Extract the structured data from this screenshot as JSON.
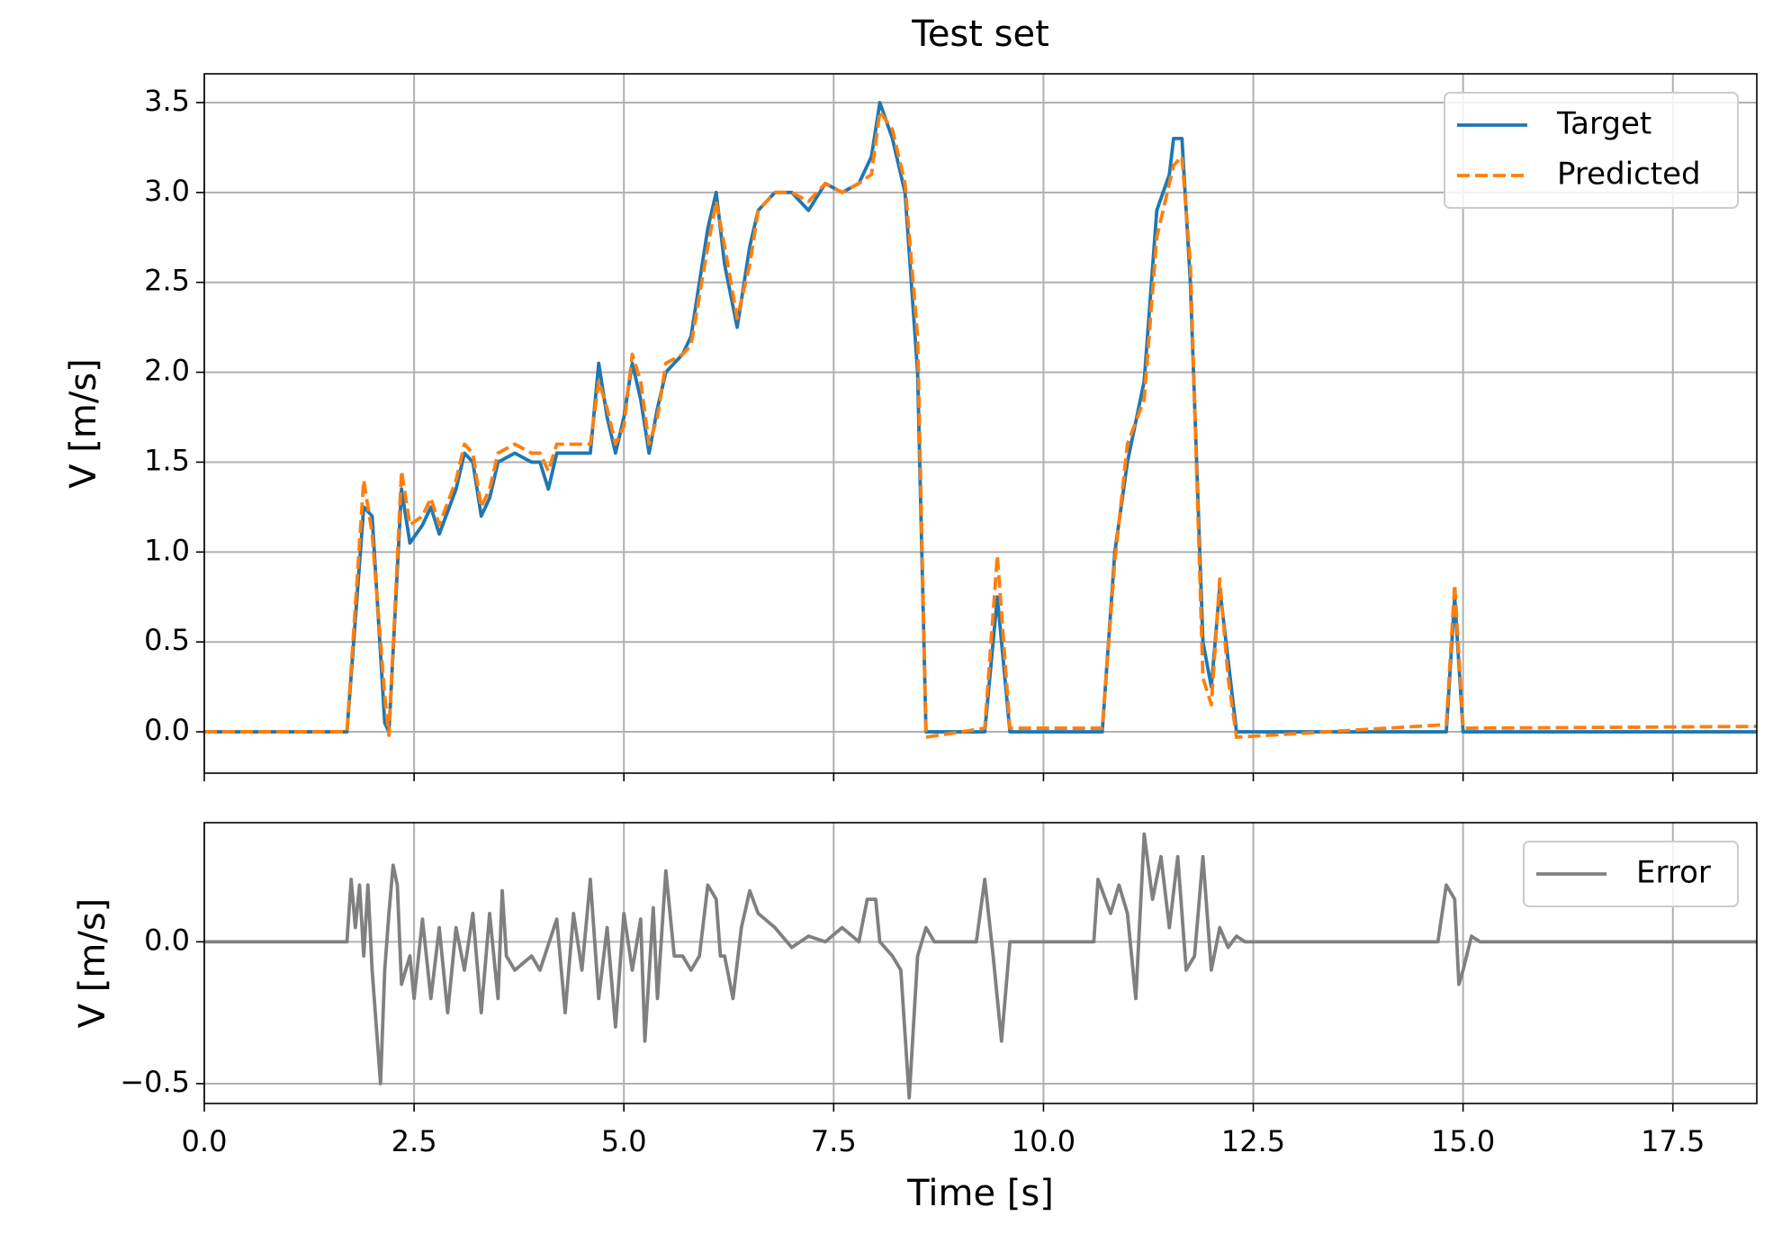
{
  "chart_data": [
    {
      "type": "line",
      "title": "Test set",
      "ylabel": "V [m/s]",
      "xlim": [
        0,
        18.5
      ],
      "ylim": [
        -0.23,
        3.66
      ],
      "xticks": [
        0,
        2.5,
        5,
        7.5,
        10,
        12.5,
        15,
        17.5
      ],
      "show_xticklabels": false,
      "yticks": [
        {
          "value": 0,
          "label": "0.0"
        },
        0.5,
        {
          "value": 1,
          "label": "1.0"
        },
        1.5,
        {
          "value": 2,
          "label": "2.0"
        },
        2.5,
        {
          "value": 3,
          "label": "3.0"
        },
        3.5
      ],
      "grid": true,
      "legend": "upper right",
      "x": [
        0,
        1.7,
        1.9,
        2.0,
        2.15,
        2.2,
        2.35,
        2.45,
        2.6,
        2.7,
        2.8,
        3.0,
        3.1,
        3.2,
        3.3,
        3.4,
        3.5,
        3.7,
        3.9,
        4.0,
        4.1,
        4.2,
        4.4,
        4.6,
        4.7,
        4.8,
        4.9,
        5.0,
        5.1,
        5.2,
        5.3,
        5.4,
        5.5,
        5.7,
        5.8,
        6.0,
        6.1,
        6.2,
        6.35,
        6.5,
        6.6,
        6.8,
        7.0,
        7.2,
        7.4,
        7.6,
        7.8,
        7.95,
        8.05,
        8.2,
        8.35,
        8.5,
        8.6,
        9.3,
        9.45,
        9.6,
        10.7,
        10.85,
        11.0,
        11.2,
        11.35,
        11.5,
        11.55,
        11.65,
        11.75,
        11.9,
        12.0,
        12.1,
        12.2,
        12.3,
        14.8,
        14.9,
        15.0,
        18.5
      ],
      "series": [
        {
          "name": "Target",
          "color": "#1f77b4",
          "linestyle": "solid",
          "values": [
            0,
            0,
            1.25,
            1.2,
            0.05,
            0,
            1.35,
            1.05,
            1.15,
            1.25,
            1.1,
            1.35,
            1.55,
            1.5,
            1.2,
            1.3,
            1.5,
            1.55,
            1.5,
            1.5,
            1.35,
            1.55,
            1.55,
            1.55,
            2.05,
            1.75,
            1.55,
            1.75,
            2.05,
            1.85,
            1.55,
            1.8,
            2.0,
            2.1,
            2.2,
            2.8,
            3.0,
            2.6,
            2.25,
            2.7,
            2.9,
            3.0,
            3.0,
            2.9,
            3.05,
            3.0,
            3.05,
            3.2,
            3.5,
            3.3,
            3.0,
            2.0,
            0,
            0,
            0.75,
            0,
            0,
            1.0,
            1.5,
            1.95,
            2.9,
            3.1,
            3.3,
            3.3,
            2.5,
            0.5,
            0.25,
            0.8,
            0.4,
            0,
            0,
            0.75,
            0,
            0
          ]
        },
        {
          "name": "Predicted",
          "color": "#ff7f0e",
          "linestyle": "dashed",
          "values": [
            0,
            0,
            1.4,
            1.1,
            0.2,
            -0.02,
            1.45,
            1.15,
            1.2,
            1.3,
            1.15,
            1.4,
            1.6,
            1.55,
            1.25,
            1.35,
            1.55,
            1.6,
            1.55,
            1.55,
            1.45,
            1.6,
            1.6,
            1.6,
            1.95,
            1.8,
            1.6,
            1.7,
            2.1,
            1.95,
            1.6,
            1.75,
            2.05,
            2.1,
            2.15,
            2.7,
            2.95,
            2.7,
            2.3,
            2.6,
            2.9,
            3.0,
            3.0,
            2.95,
            3.05,
            3.0,
            3.05,
            3.1,
            3.45,
            3.35,
            3.05,
            2.2,
            -0.03,
            0.02,
            0.98,
            0.02,
            0.02,
            0.95,
            1.6,
            1.85,
            2.75,
            3.05,
            3.15,
            3.2,
            2.6,
            0.3,
            0.15,
            0.85,
            0.3,
            -0.03,
            0.04,
            0.82,
            0.02,
            0.03
          ]
        }
      ]
    },
    {
      "type": "line",
      "xlabel": "Time [s]",
      "ylabel": "V [m/s]",
      "xlim": [
        0,
        18.5
      ],
      "ylim": [
        -0.57,
        0.42
      ],
      "xticks": [
        {
          "value": 0,
          "label": "0.0"
        },
        2.5,
        {
          "value": 5,
          "label": "5.0"
        },
        7.5,
        {
          "value": 10,
          "label": "10.0"
        },
        12.5,
        {
          "value": 15,
          "label": "15.0"
        },
        17.5
      ],
      "show_xticklabels": true,
      "yticks": [
        {
          "value": -0.5,
          "label": "−0.5"
        },
        {
          "value": 0,
          "label": "0.0"
        }
      ],
      "grid": true,
      "legend": "upper right",
      "x": [
        0,
        1.7,
        1.75,
        1.8,
        1.85,
        1.9,
        1.95,
        2.0,
        2.1,
        2.15,
        2.2,
        2.25,
        2.3,
        2.35,
        2.45,
        2.5,
        2.6,
        2.7,
        2.8,
        2.9,
        3.0,
        3.1,
        3.2,
        3.3,
        3.4,
        3.5,
        3.55,
        3.6,
        3.7,
        3.9,
        4.0,
        4.2,
        4.3,
        4.4,
        4.5,
        4.6,
        4.7,
        4.8,
        4.9,
        5.0,
        5.1,
        5.2,
        5.25,
        5.35,
        5.4,
        5.5,
        5.6,
        5.7,
        5.8,
        5.9,
        6.0,
        6.1,
        6.15,
        6.2,
        6.3,
        6.4,
        6.5,
        6.6,
        6.8,
        7.0,
        7.2,
        7.4,
        7.6,
        7.8,
        7.9,
        8.0,
        8.05,
        8.2,
        8.3,
        8.4,
        8.5,
        8.6,
        8.7,
        9.2,
        9.3,
        9.4,
        9.5,
        9.6,
        10.6,
        10.65,
        10.8,
        10.9,
        11.0,
        11.1,
        11.2,
        11.3,
        11.4,
        11.5,
        11.6,
        11.7,
        11.8,
        11.9,
        12.0,
        12.1,
        12.2,
        12.3,
        12.4,
        14.7,
        14.8,
        14.9,
        14.95,
        15.0,
        15.1,
        15.2,
        18.5
      ],
      "series": [
        {
          "name": "Error",
          "color": "#808080",
          "linestyle": "solid",
          "values": [
            0,
            0,
            0.22,
            0.05,
            0.2,
            -0.05,
            0.2,
            -0.1,
            -0.5,
            -0.1,
            0.1,
            0.27,
            0.2,
            -0.15,
            -0.05,
            -0.2,
            0.08,
            -0.2,
            0.05,
            -0.25,
            0.05,
            -0.1,
            0.1,
            -0.25,
            0.1,
            -0.2,
            0.18,
            -0.05,
            -0.1,
            -0.05,
            -0.1,
            0.08,
            -0.25,
            0.1,
            -0.1,
            0.22,
            -0.2,
            0.05,
            -0.3,
            0.1,
            -0.1,
            0.08,
            -0.35,
            0.12,
            -0.2,
            0.25,
            -0.05,
            -0.05,
            -0.1,
            -0.05,
            0.2,
            0.15,
            -0.05,
            -0.05,
            -0.2,
            0.05,
            0.18,
            0.1,
            0.05,
            -0.02,
            0.02,
            0,
            0.05,
            0,
            0.15,
            0.15,
            0,
            -0.05,
            -0.1,
            -0.55,
            -0.05,
            0.05,
            0,
            0,
            0.22,
            -0.05,
            -0.35,
            0,
            0,
            0.22,
            0.1,
            0.2,
            0.1,
            -0.2,
            0.38,
            0.15,
            0.3,
            0.05,
            0.3,
            -0.1,
            -0.05,
            0.3,
            -0.1,
            0.05,
            -0.02,
            0.02,
            0,
            0,
            0.2,
            0.15,
            -0.15,
            -0.1,
            0.02,
            0,
            0
          ]
        }
      ]
    }
  ]
}
